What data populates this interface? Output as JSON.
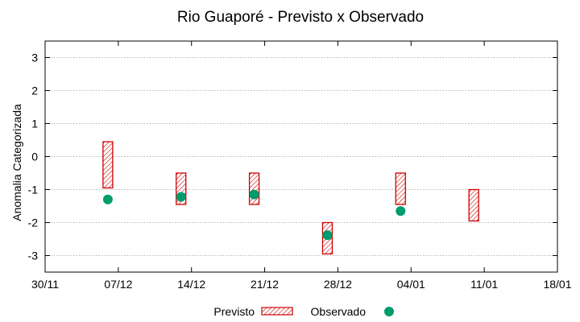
{
  "chart_data": {
    "type": "range-bar",
    "title": "Rio Guaporé - Previsto x Observado",
    "xlabel": "",
    "ylabel": "Anomalia Categorizada",
    "ylim": [
      -3.5,
      3.5
    ],
    "yticks": [
      -3,
      -2,
      -1,
      0,
      1,
      2,
      3
    ],
    "x_tick_labels": [
      "30/11",
      "07/12",
      "14/12",
      "21/12",
      "28/12",
      "04/01",
      "11/01",
      "18/01"
    ],
    "grid": true,
    "legend_position": "bottom",
    "series": [
      {
        "name": "Previsto",
        "kind": "range",
        "color": "#cc0000",
        "points": [
          {
            "x": "06/12",
            "low": -0.95,
            "high": 0.45
          },
          {
            "x": "13/12",
            "low": -1.45,
            "high": -0.5
          },
          {
            "x": "20/12",
            "low": -1.45,
            "high": -0.5
          },
          {
            "x": "27/12",
            "low": -2.95,
            "high": -2.0
          },
          {
            "x": "03/01",
            "low": -1.45,
            "high": -0.5
          },
          {
            "x": "10/01",
            "low": -1.95,
            "high": -1.0
          }
        ]
      },
      {
        "name": "Observado",
        "kind": "point",
        "color": "#009c6e",
        "points": [
          {
            "x": "06/12",
            "y": -1.3
          },
          {
            "x": "13/12",
            "y": -1.22
          },
          {
            "x": "20/12",
            "y": -1.15
          },
          {
            "x": "27/12",
            "y": -2.38
          },
          {
            "x": "03/01",
            "y": -1.65
          }
        ]
      }
    ]
  }
}
